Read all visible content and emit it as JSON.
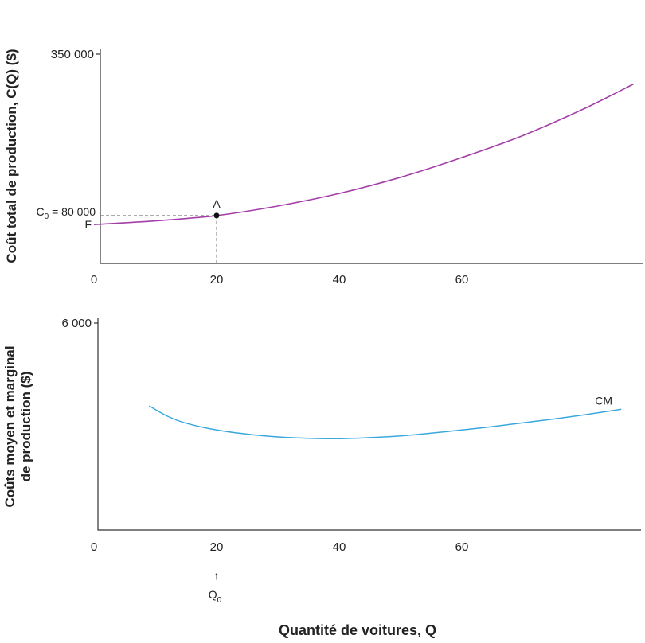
{
  "chart_data": [
    {
      "type": "line",
      "title": "",
      "ylabel": "Coût total de production, C(Q) ($)",
      "xlabel": "",
      "xlim": [
        0,
        88
      ],
      "ylim": [
        0,
        350000
      ],
      "x_ticks": [
        "0",
        "20",
        "40",
        "60"
      ],
      "y_ticks": [
        "350 000"
      ],
      "series": [
        {
          "name": "C(Q)",
          "color": "#a43fa8",
          "x": [
            0,
            10,
            20,
            30,
            40,
            50,
            60,
            70,
            80,
            88
          ],
          "y": [
            65000,
            71000,
            80000,
            96000,
            117000,
            144000,
            177000,
            214000,
            259000,
            300000
          ]
        }
      ],
      "annotations": {
        "point_label": "A",
        "point": {
          "x": 20,
          "y": 80000
        },
        "c0_label_prefix": "C",
        "c0_label_sub": "0",
        "c0_label_suffix": " = 80 000",
        "f_label": "F",
        "f_value": 65000
      }
    },
    {
      "type": "line",
      "title": "",
      "ylabel_line1": "Coûts moyen et marginal",
      "ylabel_line2": "de production ($)",
      "xlabel": "Quantité de voitures, Q",
      "xlim": [
        0,
        88
      ],
      "ylim": [
        0,
        6000
      ],
      "x_ticks": [
        "0",
        "20",
        "40",
        "60"
      ],
      "y_ticks": [
        "6 000"
      ],
      "series": [
        {
          "name": "CM",
          "color": "#3aa8dc",
          "x": [
            9,
            12,
            15,
            20,
            25,
            30,
            35,
            40,
            45,
            50,
            55,
            60,
            65,
            70,
            75,
            80,
            86
          ],
          "y": [
            3600,
            3300,
            3100,
            2900,
            2780,
            2700,
            2660,
            2650,
            2680,
            2730,
            2810,
            2900,
            3000,
            3110,
            3220,
            3340,
            3500
          ]
        }
      ],
      "annotations": {
        "q0_prefix": "Q",
        "q0_sub": "0",
        "q0_value": 20,
        "arrow": "↑"
      }
    }
  ]
}
